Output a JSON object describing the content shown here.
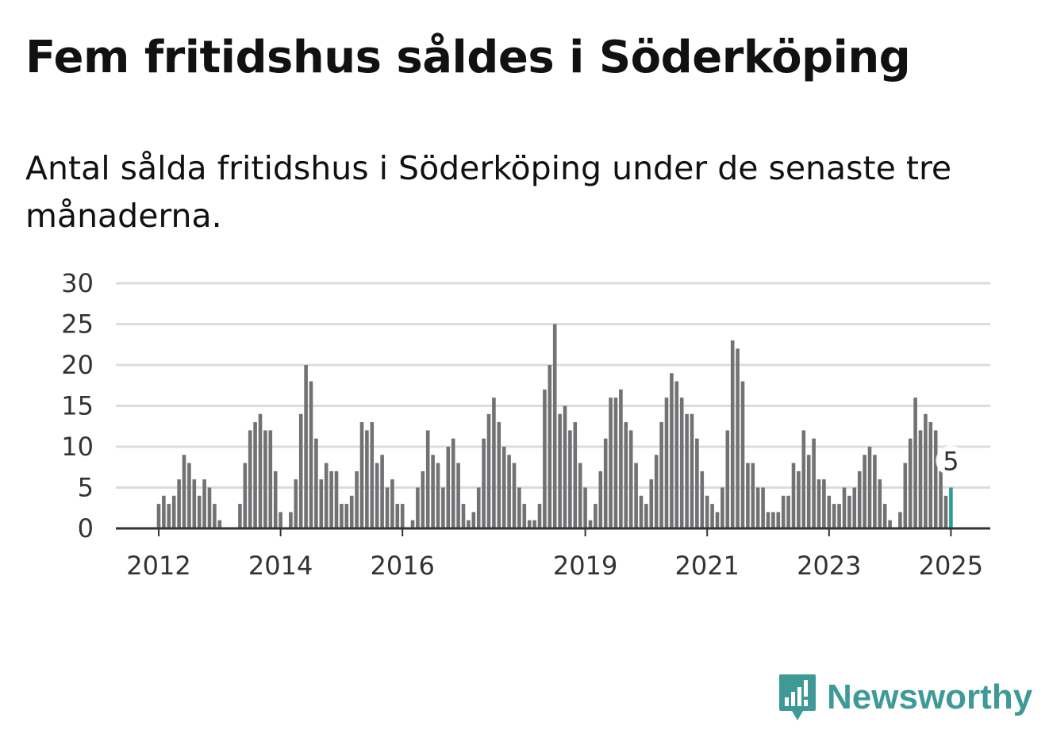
{
  "title": "Fem fritidshus såldes i Söderköping",
  "subtitle": "Antal sålda fritidshus i Söderköping under de senaste tre månaderna.",
  "brand": {
    "name": "Newsworthy",
    "icon": "newsworthy-logo-icon",
    "color": "#3f9a97"
  },
  "chart_data": {
    "type": "bar",
    "title": "",
    "xlabel": "",
    "ylabel": "",
    "ylim": [
      0,
      30
    ],
    "yticks": [
      0,
      5,
      10,
      15,
      20,
      25,
      30
    ],
    "xtick_labels": [
      "2012",
      "2014",
      "2016",
      "2019",
      "2021",
      "2023",
      "2025"
    ],
    "grid": true,
    "bar_color": "#727275",
    "highlight_color": "#2a9d96",
    "highlight_label": "5",
    "series": [
      {
        "values": [
          {
            "x": "2012-01",
            "y": 3
          },
          {
            "x": "2012-02",
            "y": 4
          },
          {
            "x": "2012-03",
            "y": 3
          },
          {
            "x": "2012-04",
            "y": 4
          },
          {
            "x": "2012-05",
            "y": 6
          },
          {
            "x": "2012-06",
            "y": 9
          },
          {
            "x": "2012-07",
            "y": 8
          },
          {
            "x": "2012-08",
            "y": 6
          },
          {
            "x": "2012-09",
            "y": 4
          },
          {
            "x": "2012-10",
            "y": 6
          },
          {
            "x": "2012-11",
            "y": 5
          },
          {
            "x": "2012-12",
            "y": 3
          },
          {
            "x": "2013-01",
            "y": 1
          },
          {
            "x": "2013-02",
            "y": 0
          },
          {
            "x": "2013-03",
            "y": 0
          },
          {
            "x": "2013-04",
            "y": 0
          },
          {
            "x": "2013-05",
            "y": 3
          },
          {
            "x": "2013-06",
            "y": 8
          },
          {
            "x": "2013-07",
            "y": 12
          },
          {
            "x": "2013-08",
            "y": 13
          },
          {
            "x": "2013-09",
            "y": 14
          },
          {
            "x": "2013-10",
            "y": 12
          },
          {
            "x": "2013-11",
            "y": 12
          },
          {
            "x": "2013-12",
            "y": 7
          },
          {
            "x": "2014-01",
            "y": 2
          },
          {
            "x": "2014-02",
            "y": 0
          },
          {
            "x": "2014-03",
            "y": 2
          },
          {
            "x": "2014-04",
            "y": 6
          },
          {
            "x": "2014-05",
            "y": 14
          },
          {
            "x": "2014-06",
            "y": 20
          },
          {
            "x": "2014-07",
            "y": 18
          },
          {
            "x": "2014-08",
            "y": 11
          },
          {
            "x": "2014-09",
            "y": 6
          },
          {
            "x": "2014-10",
            "y": 8
          },
          {
            "x": "2014-11",
            "y": 7
          },
          {
            "x": "2014-12",
            "y": 7
          },
          {
            "x": "2015-01",
            "y": 3
          },
          {
            "x": "2015-02",
            "y": 3
          },
          {
            "x": "2015-03",
            "y": 4
          },
          {
            "x": "2015-04",
            "y": 7
          },
          {
            "x": "2015-05",
            "y": 13
          },
          {
            "x": "2015-06",
            "y": 12
          },
          {
            "x": "2015-07",
            "y": 13
          },
          {
            "x": "2015-08",
            "y": 8
          },
          {
            "x": "2015-09",
            "y": 9
          },
          {
            "x": "2015-10",
            "y": 5
          },
          {
            "x": "2015-11",
            "y": 6
          },
          {
            "x": "2015-12",
            "y": 3
          },
          {
            "x": "2016-01",
            "y": 3
          },
          {
            "x": "2016-02",
            "y": 0
          },
          {
            "x": "2016-03",
            "y": 1
          },
          {
            "x": "2016-04",
            "y": 5
          },
          {
            "x": "2016-05",
            "y": 7
          },
          {
            "x": "2016-06",
            "y": 12
          },
          {
            "x": "2016-07",
            "y": 9
          },
          {
            "x": "2016-08",
            "y": 8
          },
          {
            "x": "2016-09",
            "y": 5
          },
          {
            "x": "2016-10",
            "y": 10
          },
          {
            "x": "2016-11",
            "y": 11
          },
          {
            "x": "2016-12",
            "y": 8
          },
          {
            "x": "2017-01",
            "y": 3
          },
          {
            "x": "2017-02",
            "y": 1
          },
          {
            "x": "2017-03",
            "y": 2
          },
          {
            "x": "2017-04",
            "y": 5
          },
          {
            "x": "2017-05",
            "y": 11
          },
          {
            "x": "2017-06",
            "y": 14
          },
          {
            "x": "2017-07",
            "y": 16
          },
          {
            "x": "2017-08",
            "y": 13
          },
          {
            "x": "2017-09",
            "y": 10
          },
          {
            "x": "2017-10",
            "y": 9
          },
          {
            "x": "2017-11",
            "y": 8
          },
          {
            "x": "2017-12",
            "y": 5
          },
          {
            "x": "2018-01",
            "y": 3
          },
          {
            "x": "2018-02",
            "y": 1
          },
          {
            "x": "2018-03",
            "y": 1
          },
          {
            "x": "2018-04",
            "y": 3
          },
          {
            "x": "2018-05",
            "y": 17
          },
          {
            "x": "2018-06",
            "y": 20
          },
          {
            "x": "2018-07",
            "y": 25
          },
          {
            "x": "2018-08",
            "y": 14
          },
          {
            "x": "2018-09",
            "y": 15
          },
          {
            "x": "2018-10",
            "y": 12
          },
          {
            "x": "2018-11",
            "y": 13
          },
          {
            "x": "2018-12",
            "y": 8
          },
          {
            "x": "2019-01",
            "y": 5
          },
          {
            "x": "2019-02",
            "y": 1
          },
          {
            "x": "2019-03",
            "y": 3
          },
          {
            "x": "2019-04",
            "y": 7
          },
          {
            "x": "2019-05",
            "y": 11
          },
          {
            "x": "2019-06",
            "y": 16
          },
          {
            "x": "2019-07",
            "y": 16
          },
          {
            "x": "2019-08",
            "y": 17
          },
          {
            "x": "2019-09",
            "y": 13
          },
          {
            "x": "2019-10",
            "y": 12
          },
          {
            "x": "2019-11",
            "y": 8
          },
          {
            "x": "2019-12",
            "y": 4
          },
          {
            "x": "2020-01",
            "y": 3
          },
          {
            "x": "2020-02",
            "y": 6
          },
          {
            "x": "2020-03",
            "y": 9
          },
          {
            "x": "2020-04",
            "y": 13
          },
          {
            "x": "2020-05",
            "y": 16
          },
          {
            "x": "2020-06",
            "y": 19
          },
          {
            "x": "2020-07",
            "y": 18
          },
          {
            "x": "2020-08",
            "y": 16
          },
          {
            "x": "2020-09",
            "y": 14
          },
          {
            "x": "2020-10",
            "y": 14
          },
          {
            "x": "2020-11",
            "y": 11
          },
          {
            "x": "2020-12",
            "y": 7
          },
          {
            "x": "2021-01",
            "y": 4
          },
          {
            "x": "2021-02",
            "y": 3
          },
          {
            "x": "2021-03",
            "y": 2
          },
          {
            "x": "2021-04",
            "y": 5
          },
          {
            "x": "2021-05",
            "y": 12
          },
          {
            "x": "2021-06",
            "y": 23
          },
          {
            "x": "2021-07",
            "y": 22
          },
          {
            "x": "2021-08",
            "y": 18
          },
          {
            "x": "2021-09",
            "y": 8
          },
          {
            "x": "2021-10",
            "y": 8
          },
          {
            "x": "2021-11",
            "y": 5
          },
          {
            "x": "2021-12",
            "y": 5
          },
          {
            "x": "2022-01",
            "y": 2
          },
          {
            "x": "2022-02",
            "y": 2
          },
          {
            "x": "2022-03",
            "y": 2
          },
          {
            "x": "2022-04",
            "y": 4
          },
          {
            "x": "2022-05",
            "y": 4
          },
          {
            "x": "2022-06",
            "y": 8
          },
          {
            "x": "2022-07",
            "y": 7
          },
          {
            "x": "2022-08",
            "y": 12
          },
          {
            "x": "2022-09",
            "y": 9
          },
          {
            "x": "2022-10",
            "y": 11
          },
          {
            "x": "2022-11",
            "y": 6
          },
          {
            "x": "2022-12",
            "y": 6
          },
          {
            "x": "2023-01",
            "y": 4
          },
          {
            "x": "2023-02",
            "y": 3
          },
          {
            "x": "2023-03",
            "y": 3
          },
          {
            "x": "2023-04",
            "y": 5
          },
          {
            "x": "2023-05",
            "y": 4
          },
          {
            "x": "2023-06",
            "y": 5
          },
          {
            "x": "2023-07",
            "y": 7
          },
          {
            "x": "2023-08",
            "y": 9
          },
          {
            "x": "2023-09",
            "y": 10
          },
          {
            "x": "2023-10",
            "y": 9
          },
          {
            "x": "2023-11",
            "y": 6
          },
          {
            "x": "2023-12",
            "y": 3
          },
          {
            "x": "2024-01",
            "y": 1
          },
          {
            "x": "2024-02",
            "y": 0
          },
          {
            "x": "2024-03",
            "y": 2
          },
          {
            "x": "2024-04",
            "y": 8
          },
          {
            "x": "2024-05",
            "y": 11
          },
          {
            "x": "2024-06",
            "y": 16
          },
          {
            "x": "2024-07",
            "y": 12
          },
          {
            "x": "2024-08",
            "y": 14
          },
          {
            "x": "2024-09",
            "y": 13
          },
          {
            "x": "2024-10",
            "y": 12
          },
          {
            "x": "2024-11",
            "y": 7
          },
          {
            "x": "2024-12",
            "y": 4
          },
          {
            "x": "2025-01",
            "y": 5
          }
        ]
      }
    ]
  }
}
